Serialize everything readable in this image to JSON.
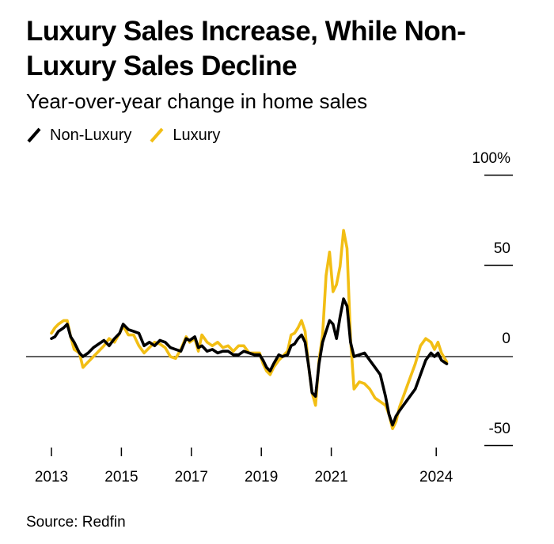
{
  "title": "Luxury Sales Increase, While Non-Luxury Sales Decline",
  "subtitle": "Year-over-year change in home sales",
  "source": "Source: Redfin",
  "colors": {
    "non_luxury": "#000000",
    "luxury": "#f2be14",
    "baseline": "#000000"
  },
  "chart_data": {
    "type": "line",
    "title": "Luxury Sales Increase, While Non-Luxury Sales Decline",
    "subtitle": "Year-over-year change in home sales",
    "ylim": [
      -50,
      100
    ],
    "xlim": [
      2013,
      2024.3
    ],
    "y_ticks": [
      {
        "value": 100,
        "label": "100%"
      },
      {
        "value": 50,
        "label": "50"
      },
      {
        "value": 0,
        "label": "0"
      },
      {
        "value": -50,
        "label": "-50"
      }
    ],
    "x_ticks": [
      {
        "value": 2013,
        "label": "2013"
      },
      {
        "value": 2015,
        "label": "2015"
      },
      {
        "value": 2017,
        "label": "2017"
      },
      {
        "value": 2019,
        "label": "2019"
      },
      {
        "value": 2021,
        "label": "2021"
      },
      {
        "value": 2024,
        "label": "2024"
      }
    ],
    "legend_position": "top-left",
    "series": [
      {
        "name": "Non-Luxury",
        "color": "#000000",
        "points": [
          [
            2013.0,
            10
          ],
          [
            2013.1,
            11
          ],
          [
            2013.2,
            14
          ],
          [
            2013.35,
            16
          ],
          [
            2013.45,
            18
          ],
          [
            2013.55,
            11
          ],
          [
            2013.65,
            8
          ],
          [
            2013.8,
            2
          ],
          [
            2013.9,
            0
          ],
          [
            2014.05,
            2
          ],
          [
            2014.2,
            5
          ],
          [
            2014.35,
            7
          ],
          [
            2014.5,
            9
          ],
          [
            2014.65,
            6
          ],
          [
            2014.8,
            10
          ],
          [
            2014.95,
            13
          ],
          [
            2015.05,
            18
          ],
          [
            2015.2,
            15
          ],
          [
            2015.35,
            14
          ],
          [
            2015.5,
            13
          ],
          [
            2015.65,
            6
          ],
          [
            2015.8,
            8
          ],
          [
            2015.95,
            6
          ],
          [
            2016.1,
            9
          ],
          [
            2016.25,
            8
          ],
          [
            2016.4,
            5
          ],
          [
            2016.55,
            4
          ],
          [
            2016.7,
            3
          ],
          [
            2016.85,
            10
          ],
          [
            2016.95,
            9
          ],
          [
            2017.1,
            11
          ],
          [
            2017.2,
            5
          ],
          [
            2017.3,
            6
          ],
          [
            2017.45,
            3
          ],
          [
            2017.6,
            4
          ],
          [
            2017.75,
            2
          ],
          [
            2017.9,
            3
          ],
          [
            2018.05,
            3
          ],
          [
            2018.2,
            1
          ],
          [
            2018.35,
            1
          ],
          [
            2018.5,
            3
          ],
          [
            2018.65,
            2
          ],
          [
            2018.8,
            1
          ],
          [
            2018.95,
            1
          ],
          [
            2019.05,
            -2
          ],
          [
            2019.15,
            -6
          ],
          [
            2019.25,
            -8
          ],
          [
            2019.35,
            -4
          ],
          [
            2019.5,
            1
          ],
          [
            2019.6,
            0
          ],
          [
            2019.75,
            1
          ],
          [
            2019.85,
            6
          ],
          [
            2019.95,
            7
          ],
          [
            2020.05,
            10
          ],
          [
            2020.15,
            12
          ],
          [
            2020.25,
            8
          ],
          [
            2020.35,
            -5
          ],
          [
            2020.45,
            -20
          ],
          [
            2020.55,
            -22
          ],
          [
            2020.65,
            -4
          ],
          [
            2020.75,
            8
          ],
          [
            2020.85,
            14
          ],
          [
            2020.95,
            20
          ],
          [
            2021.05,
            18
          ],
          [
            2021.15,
            10
          ],
          [
            2021.25,
            22
          ],
          [
            2021.35,
            32
          ],
          [
            2021.45,
            28
          ],
          [
            2021.55,
            8
          ],
          [
            2021.65,
            0
          ],
          [
            2021.8,
            1
          ],
          [
            2021.95,
            2
          ],
          [
            2022.1,
            -2
          ],
          [
            2022.25,
            -6
          ],
          [
            2022.4,
            -10
          ],
          [
            2022.55,
            -22
          ],
          [
            2022.65,
            -32
          ],
          [
            2022.75,
            -38
          ],
          [
            2022.85,
            -33
          ],
          [
            2022.95,
            -30
          ],
          [
            2023.1,
            -26
          ],
          [
            2023.25,
            -22
          ],
          [
            2023.4,
            -18
          ],
          [
            2023.55,
            -10
          ],
          [
            2023.7,
            -2
          ],
          [
            2023.85,
            2
          ],
          [
            2023.95,
            0
          ],
          [
            2024.05,
            2
          ],
          [
            2024.15,
            -2
          ],
          [
            2024.3,
            -4
          ]
        ]
      },
      {
        "name": "Luxury",
        "color": "#f2be14",
        "points": [
          [
            2013.0,
            13
          ],
          [
            2013.1,
            16
          ],
          [
            2013.2,
            18
          ],
          [
            2013.35,
            20
          ],
          [
            2013.45,
            20
          ],
          [
            2013.55,
            11
          ],
          [
            2013.65,
            4
          ],
          [
            2013.8,
            2
          ],
          [
            2013.9,
            -6
          ],
          [
            2014.05,
            -3
          ],
          [
            2014.2,
            0
          ],
          [
            2014.35,
            3
          ],
          [
            2014.5,
            6
          ],
          [
            2014.65,
            10
          ],
          [
            2014.8,
            8
          ],
          [
            2014.95,
            13
          ],
          [
            2015.05,
            17
          ],
          [
            2015.2,
            12
          ],
          [
            2015.35,
            12
          ],
          [
            2015.5,
            6
          ],
          [
            2015.65,
            2
          ],
          [
            2015.8,
            5
          ],
          [
            2015.95,
            8
          ],
          [
            2016.1,
            7
          ],
          [
            2016.25,
            5
          ],
          [
            2016.4,
            0
          ],
          [
            2016.55,
            -1
          ],
          [
            2016.7,
            4
          ],
          [
            2016.85,
            11
          ],
          [
            2016.95,
            8
          ],
          [
            2017.1,
            10
          ],
          [
            2017.2,
            3
          ],
          [
            2017.3,
            12
          ],
          [
            2017.45,
            8
          ],
          [
            2017.6,
            6
          ],
          [
            2017.75,
            8
          ],
          [
            2017.9,
            5
          ],
          [
            2018.05,
            6
          ],
          [
            2018.2,
            3
          ],
          [
            2018.35,
            6
          ],
          [
            2018.5,
            6
          ],
          [
            2018.65,
            2
          ],
          [
            2018.8,
            2
          ],
          [
            2018.95,
            2
          ],
          [
            2019.05,
            -4
          ],
          [
            2019.15,
            -8
          ],
          [
            2019.25,
            -10
          ],
          [
            2019.35,
            -6
          ],
          [
            2019.5,
            -2
          ],
          [
            2019.6,
            0
          ],
          [
            2019.75,
            3
          ],
          [
            2019.85,
            12
          ],
          [
            2019.95,
            13
          ],
          [
            2020.05,
            16
          ],
          [
            2020.15,
            20
          ],
          [
            2020.25,
            14
          ],
          [
            2020.35,
            -5
          ],
          [
            2020.45,
            -20
          ],
          [
            2020.55,
            -27
          ],
          [
            2020.65,
            -2
          ],
          [
            2020.75,
            12
          ],
          [
            2020.85,
            45
          ],
          [
            2020.95,
            58
          ],
          [
            2021.05,
            36
          ],
          [
            2021.15,
            40
          ],
          [
            2021.25,
            50
          ],
          [
            2021.35,
            70
          ],
          [
            2021.45,
            60
          ],
          [
            2021.55,
            10
          ],
          [
            2021.65,
            -18
          ],
          [
            2021.8,
            -14
          ],
          [
            2021.95,
            -15
          ],
          [
            2022.1,
            -18
          ],
          [
            2022.25,
            -23
          ],
          [
            2022.4,
            -25
          ],
          [
            2022.55,
            -27
          ],
          [
            2022.65,
            -32
          ],
          [
            2022.75,
            -40
          ],
          [
            2022.85,
            -36
          ],
          [
            2022.95,
            -28
          ],
          [
            2023.1,
            -20
          ],
          [
            2023.25,
            -12
          ],
          [
            2023.4,
            -4
          ],
          [
            2023.55,
            6
          ],
          [
            2023.7,
            10
          ],
          [
            2023.85,
            8
          ],
          [
            2023.95,
            4
          ],
          [
            2024.05,
            8
          ],
          [
            2024.15,
            2
          ],
          [
            2024.3,
            -3
          ]
        ]
      }
    ]
  }
}
